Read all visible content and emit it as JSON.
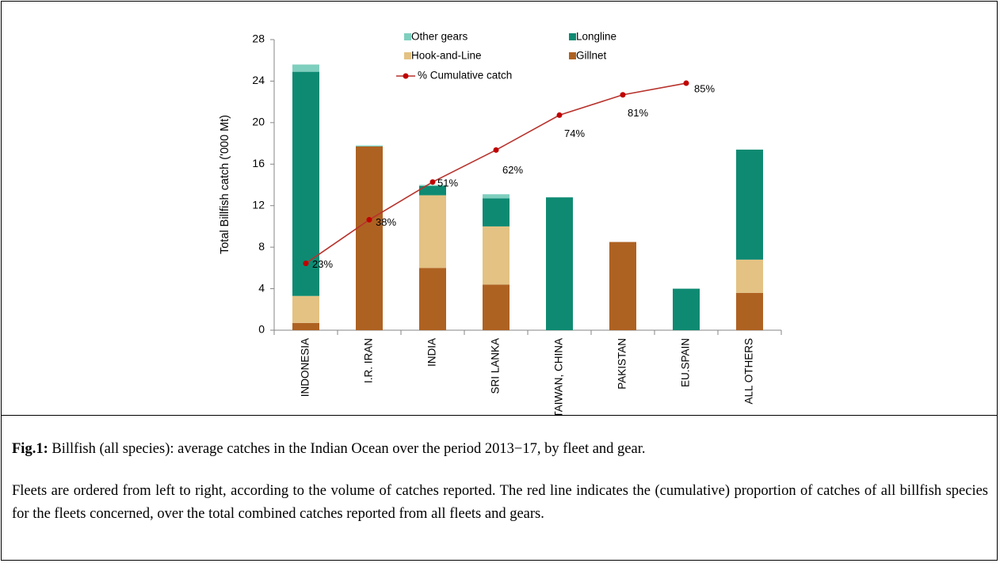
{
  "chart_data": {
    "type": "bar",
    "ylabel": "Total Billfish catch ('000 Mt)",
    "categories": [
      "INDONESIA",
      "I.R. IRAN",
      "INDIA",
      "SRI LANKA",
      "TAIWAN, CHINA",
      "PAKISTAN",
      "EU.SPAIN",
      "ALL OTHERS"
    ],
    "stacked": true,
    "series": [
      {
        "name": "Gillnet",
        "color": "#ae6222",
        "values": [
          0.7,
          17.7,
          6.0,
          4.4,
          0,
          8.5,
          0,
          3.6
        ]
      },
      {
        "name": "Hook-and-Line",
        "color": "#e3c283",
        "values": [
          2.6,
          0,
          7.0,
          5.6,
          0,
          0,
          0,
          3.2
        ]
      },
      {
        "name": "Longline",
        "color": "#0e8a72",
        "values": [
          21.6,
          0,
          0.9,
          2.7,
          12.8,
          0,
          4.0,
          10.6
        ]
      },
      {
        "name": "Other gears",
        "color": "#7fcfbe",
        "values": [
          0.7,
          0.1,
          0.1,
          0.4,
          0,
          0,
          0,
          0
        ]
      },
      {
        "name": "% Cumulative catch",
        "type": "line",
        "axis": "y2",
        "color": "#b8322c",
        "marker_color": "#c00000",
        "values": [
          23,
          38,
          51,
          62,
          74,
          81,
          85,
          null
        ],
        "value_labels": [
          "23%",
          "38%",
          "51%",
          "62%",
          "74%",
          "81%",
          "85%",
          null
        ]
      }
    ],
    "legend_order": [
      3,
      2,
      1,
      0,
      4
    ],
    "ylim": [
      0,
      28
    ],
    "yticks": [
      0,
      4,
      8,
      12,
      16,
      20,
      24,
      28
    ],
    "y2lim": [
      0,
      100
    ]
  },
  "caption": {
    "label": "Fig.1:",
    "text": "Billfish (all species): average catches in the Indian Ocean over the period 2013−17, by fleet and gear.",
    "note": "Fleets are ordered from left to right, according to the volume of catches reported. The red line indicates the (cumulative) proportion of catches of all billfish species for the fleets concerned, over the total combined catches reported from all fleets and gears."
  }
}
